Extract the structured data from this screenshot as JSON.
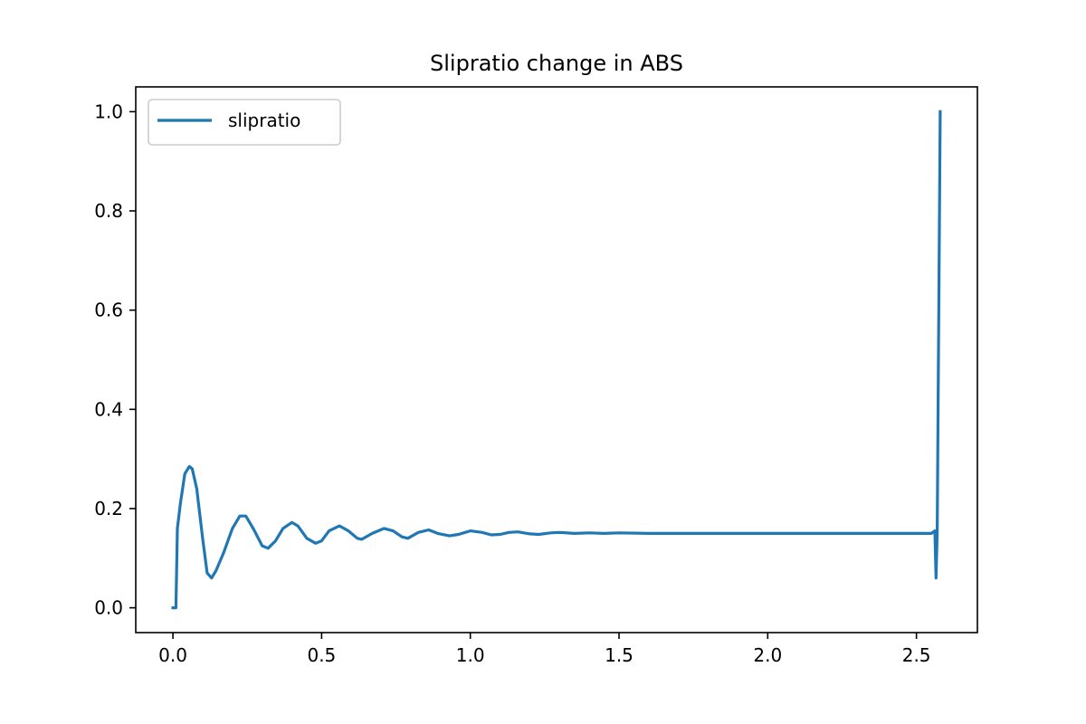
{
  "chart_data": {
    "type": "line",
    "title": "Slipratio change in ABS",
    "xlabel": "",
    "ylabel": "",
    "xlim": [
      -0.125,
      2.705
    ],
    "ylim": [
      -0.05,
      1.05
    ],
    "xticks": [
      0.0,
      0.5,
      1.0,
      1.5,
      2.0,
      2.5
    ],
    "xtick_labels": [
      "0.0",
      "0.5",
      "1.0",
      "1.5",
      "2.0",
      "2.5"
    ],
    "yticks": [
      0.0,
      0.2,
      0.4,
      0.6,
      0.8,
      1.0
    ],
    "ytick_labels": [
      "0.0",
      "0.2",
      "0.4",
      "0.6",
      "0.8",
      "1.0"
    ],
    "grid": false,
    "legend": {
      "position": "upper-left"
    },
    "series": [
      {
        "name": "slipratio",
        "color": "#1f77b4",
        "x": [
          0.0,
          0.01,
          0.015,
          0.025,
          0.04,
          0.055,
          0.065,
          0.08,
          0.1,
          0.115,
          0.13,
          0.145,
          0.17,
          0.2,
          0.225,
          0.245,
          0.27,
          0.3,
          0.32,
          0.345,
          0.37,
          0.4,
          0.42,
          0.45,
          0.48,
          0.5,
          0.525,
          0.56,
          0.59,
          0.62,
          0.635,
          0.67,
          0.71,
          0.74,
          0.77,
          0.79,
          0.825,
          0.86,
          0.89,
          0.93,
          0.96,
          1.0,
          1.04,
          1.07,
          1.1,
          1.13,
          1.16,
          1.2,
          1.23,
          1.27,
          1.3,
          1.35,
          1.4,
          1.45,
          1.5,
          1.6,
          1.7,
          1.8,
          2.0,
          2.2,
          2.4,
          2.55,
          2.562,
          2.566,
          2.57,
          2.58
        ],
        "values": [
          0.0,
          0.0,
          0.16,
          0.21,
          0.27,
          0.285,
          0.28,
          0.24,
          0.14,
          0.07,
          0.06,
          0.075,
          0.11,
          0.16,
          0.185,
          0.185,
          0.16,
          0.125,
          0.12,
          0.135,
          0.16,
          0.172,
          0.165,
          0.14,
          0.13,
          0.135,
          0.155,
          0.165,
          0.155,
          0.14,
          0.138,
          0.15,
          0.16,
          0.155,
          0.143,
          0.14,
          0.152,
          0.157,
          0.15,
          0.145,
          0.148,
          0.155,
          0.152,
          0.147,
          0.148,
          0.152,
          0.153,
          0.149,
          0.148,
          0.151,
          0.152,
          0.15,
          0.151,
          0.15,
          0.151,
          0.15,
          0.15,
          0.15,
          0.15,
          0.15,
          0.15,
          0.15,
          0.155,
          0.06,
          0.155,
          1.0
        ]
      }
    ]
  }
}
